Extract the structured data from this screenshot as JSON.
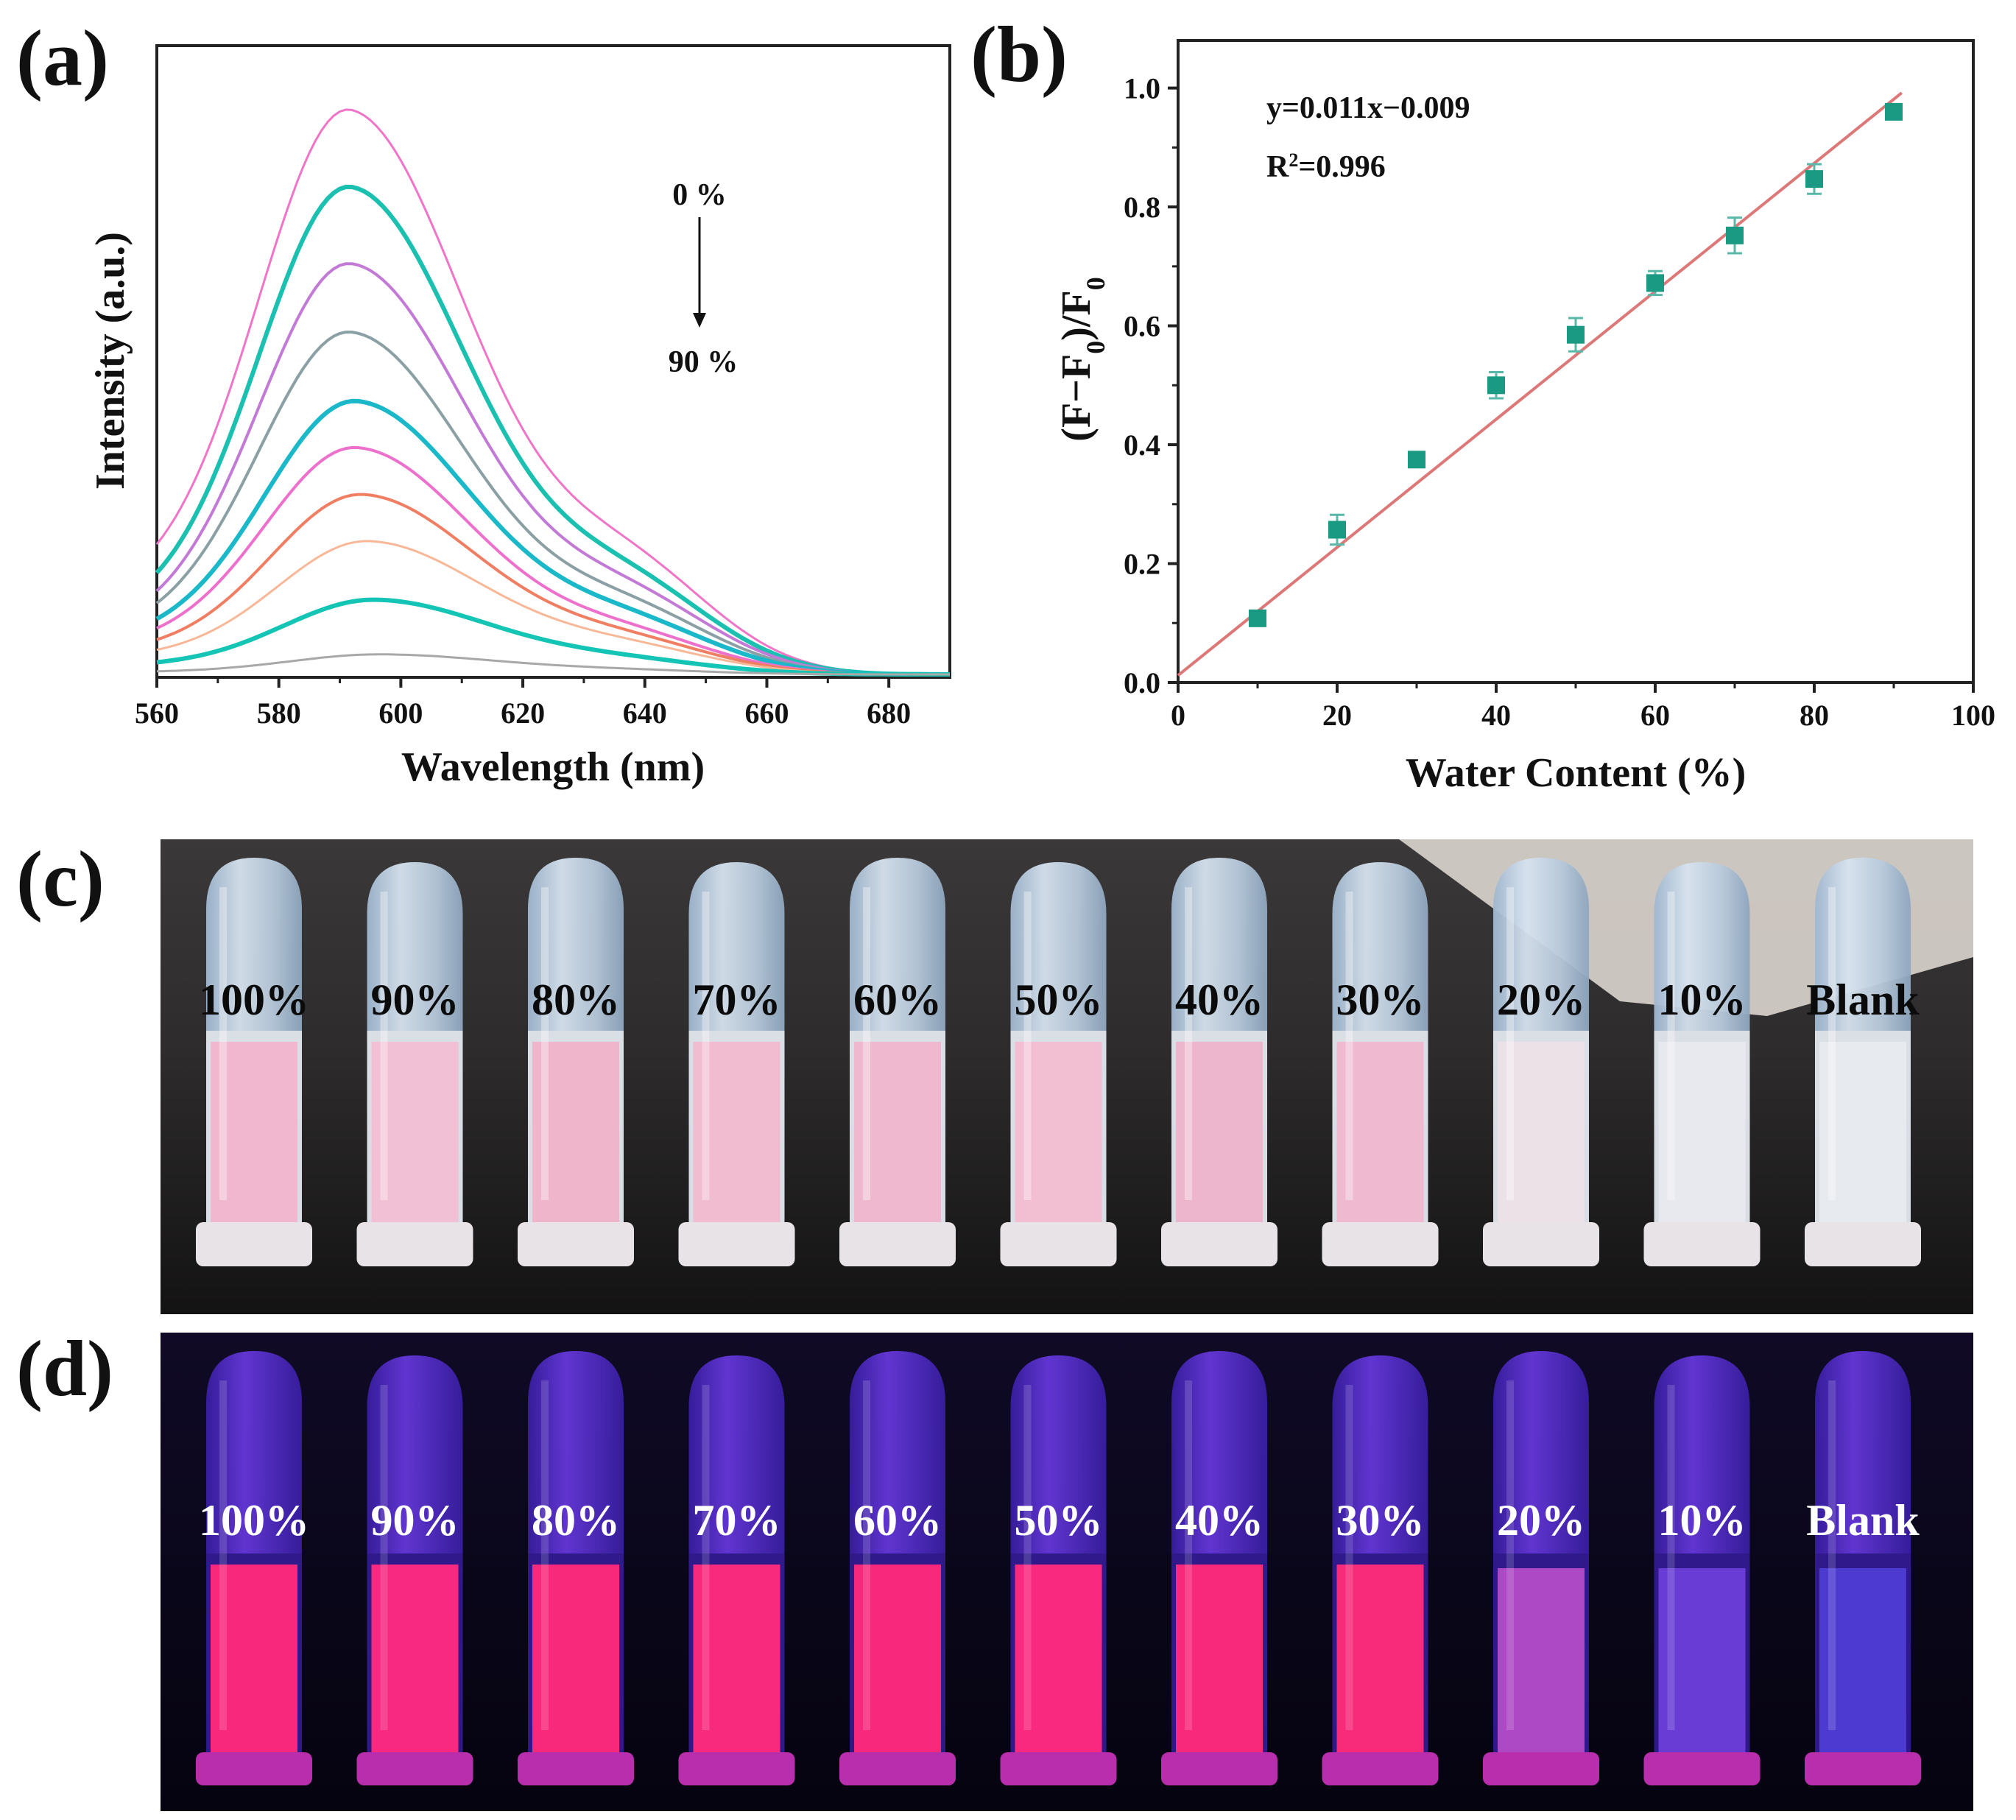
{
  "panels": {
    "a": {
      "letter": "(a)"
    },
    "b": {
      "letter": "(b)"
    },
    "c": {
      "letter": "(c)"
    },
    "d": {
      "letter": "(d)"
    }
  },
  "chart_data": [
    {
      "type": "line",
      "panel": "a",
      "xlabel": "Wavelength (nm)",
      "ylabel": "Intensity (a.u.)",
      "xlim": [
        560,
        690
      ],
      "xticks": [
        560,
        580,
        600,
        620,
        640,
        660,
        680
      ],
      "ylim": [
        0,
        1
      ],
      "annotation": {
        "top": "0 %",
        "bottom": "90 %"
      },
      "series": [
        {
          "name": "0 %",
          "peak_x": 592,
          "peak": 0.96,
          "shoulder": 0.17,
          "start": 0.14,
          "color": "#f074c8",
          "stroke": 3
        },
        {
          "name": "10 %",
          "peak_x": 592,
          "peak": 0.84,
          "shoulder": 0.14,
          "start": 0.1,
          "color": "#1cc0b0",
          "stroke": 6
        },
        {
          "name": "20 %",
          "peak_x": 592,
          "peak": 0.71,
          "shoulder": 0.12,
          "start": 0.08,
          "color": "#c27ad6",
          "stroke": 4
        },
        {
          "name": "30 %",
          "peak_x": 592,
          "peak": 0.59,
          "shoulder": 0.1,
          "start": 0.07,
          "color": "#8aa0a4",
          "stroke": 4
        },
        {
          "name": "40 %",
          "peak_x": 593,
          "peak": 0.47,
          "shoulder": 0.08,
          "start": 0.06,
          "color": "#1ab8c8",
          "stroke": 6
        },
        {
          "name": "50 %",
          "peak_x": 593,
          "peak": 0.39,
          "shoulder": 0.06,
          "start": 0.05,
          "color": "#ec70cc",
          "stroke": 4
        },
        {
          "name": "60 %",
          "peak_x": 594,
          "peak": 0.31,
          "shoulder": 0.05,
          "start": 0.04,
          "color": "#f07e62",
          "stroke": 4
        },
        {
          "name": "70 %",
          "peak_x": 595,
          "peak": 0.23,
          "shoulder": 0.04,
          "start": 0.03,
          "color": "#f8b898",
          "stroke": 3
        },
        {
          "name": "80 %",
          "peak_x": 596,
          "peak": 0.13,
          "shoulder": 0.02,
          "start": 0.015,
          "color": "#14c4b4",
          "stroke": 6
        },
        {
          "name": "90 %",
          "peak_x": 597,
          "peak": 0.035,
          "shoulder": 0.006,
          "start": 0.004,
          "color": "#a8a8a8",
          "stroke": 3
        }
      ]
    },
    {
      "type": "scatter",
      "panel": "b",
      "xlabel": "Water Content (%)",
      "ylabel": "(F−F0)/F0",
      "ylabel_parts": {
        "a": "(F−F",
        "sub1": "0",
        "b": ")/F",
        "sub2": "0"
      },
      "xlim": [
        0,
        100
      ],
      "ylim": [
        0,
        1.08
      ],
      "xticks": [
        0,
        20,
        40,
        60,
        80,
        100
      ],
      "yticks": [
        "0.0",
        "0.2",
        "0.4",
        "0.6",
        "0.8",
        "1.0"
      ],
      "x": [
        10,
        20,
        30,
        40,
        50,
        60,
        70,
        80,
        90
      ],
      "y": [
        0.108,
        0.257,
        0.375,
        0.5,
        0.585,
        0.672,
        0.752,
        0.847,
        0.96
      ],
      "error": [
        0.01,
        0.025,
        0.012,
        0.022,
        0.028,
        0.02,
        0.03,
        0.025,
        0.012
      ],
      "fit": {
        "slope": 0.011,
        "intercept": -0.009,
        "x_range": [
          0,
          91
        ]
      },
      "equation": "y=0.011x−0.009",
      "r2": {
        "prefix": "R",
        "sup": "2",
        "suffix": "=0.996"
      },
      "marker_color": "#1a9a82",
      "fit_color": "#dc7878"
    }
  ],
  "photos": {
    "c": {
      "description_labels": [
        "100%",
        "90%",
        "80%",
        "70%",
        "60%",
        "50%",
        "40%",
        "30%",
        "20%",
        "10%",
        "Blank"
      ],
      "liquid_colors": [
        "#f1b4cc",
        "#f3bed3",
        "#efb2c9",
        "#f2b8cf",
        "#f0b5cc",
        "#f2bcd1",
        "#efb3ca",
        "#f0b6cd",
        "#eee0e8",
        "#e9e9ee",
        "#e8eaef"
      ]
    },
    "d": {
      "labels": [
        "100%",
        "90%",
        "80%",
        "70%",
        "60%",
        "50%",
        "40%",
        "30%",
        "20%",
        "10%",
        "Blank"
      ],
      "liquid_colors": [
        "#ff2a7c",
        "#ff2a80",
        "#ff2a7a",
        "#ff2b7d",
        "#ff2a7c",
        "#ff2a7e",
        "#ff2a7b",
        "#ff2b7a",
        "#b24bc7",
        "#6a3ed8",
        "#4d3cd4"
      ]
    }
  }
}
